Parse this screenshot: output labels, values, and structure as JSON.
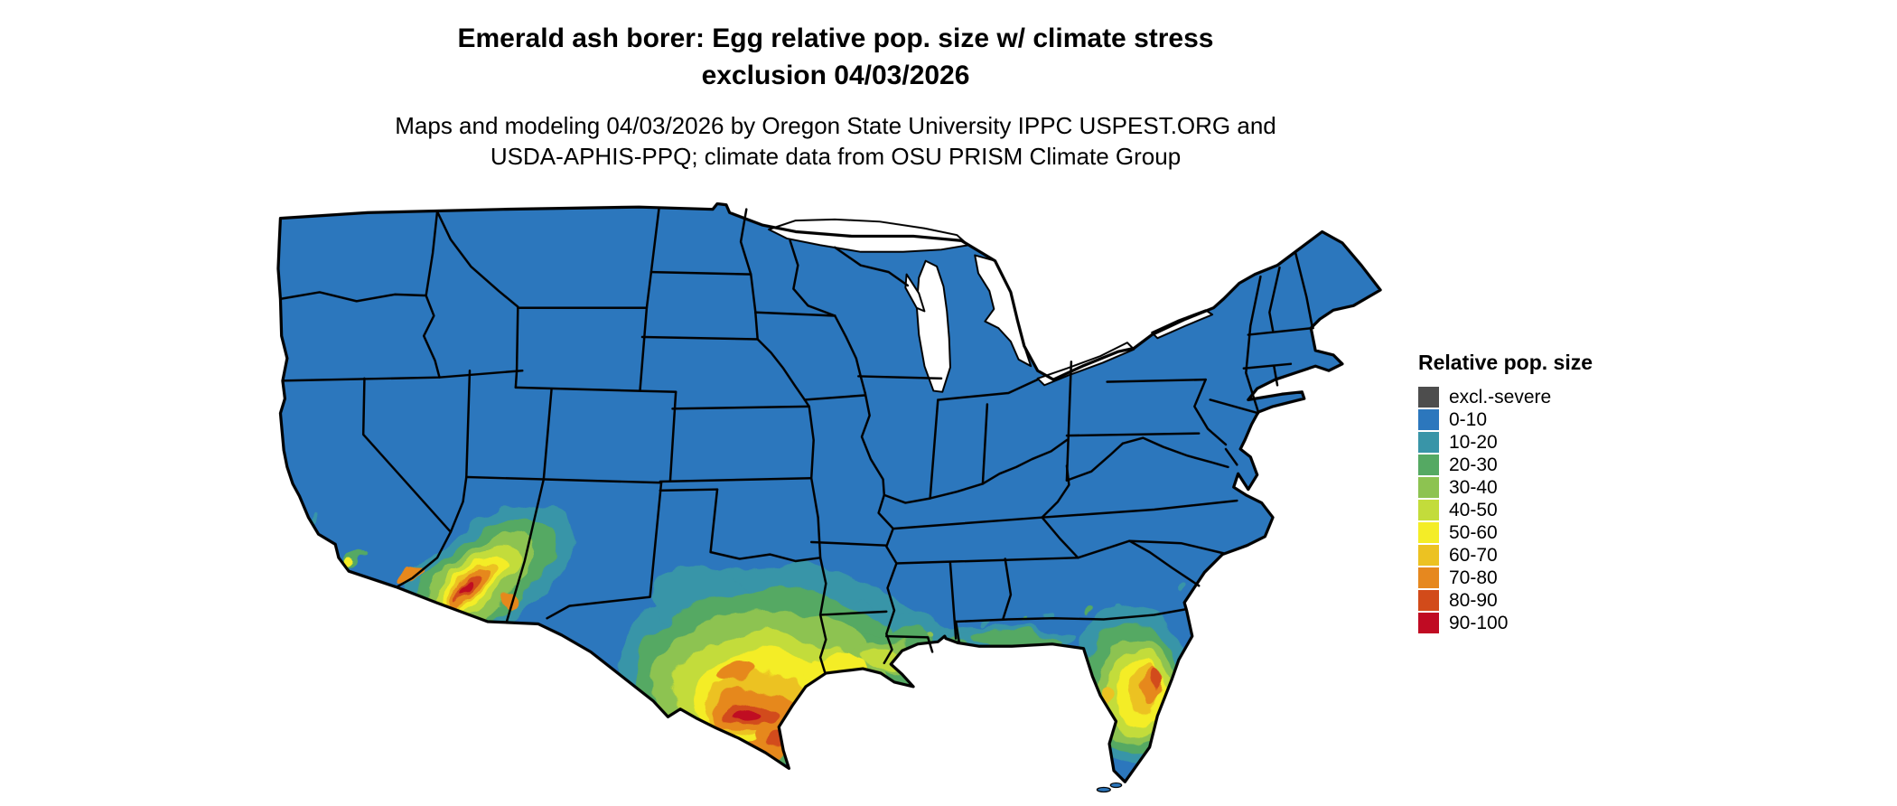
{
  "title": {
    "line1": "Emerald ash borer: Egg relative pop. size w/ climate stress",
    "line2": "exclusion 04/03/2026"
  },
  "subtitle": {
    "line1": "Maps and modeling 04/03/2026 by Oregon State University IPPC USPEST.ORG and",
    "line2": "USDA-APHIS-PPQ; climate data from OSU PRISM Climate Group"
  },
  "legend": {
    "title": "Relative pop. size",
    "entries": [
      {
        "label": "excl.-severe",
        "color": "#4d4d4d"
      },
      {
        "label": "0-10",
        "color": "#2c77bd"
      },
      {
        "label": "10-20",
        "color": "#3995a8"
      },
      {
        "label": "20-30",
        "color": "#55a963"
      },
      {
        "label": "30-40",
        "color": "#8dc351"
      },
      {
        "label": "40-50",
        "color": "#c3dc3b"
      },
      {
        "label": "50-60",
        "color": "#f4ed27"
      },
      {
        "label": "60-70",
        "color": "#ecc222"
      },
      {
        "label": "70-80",
        "color": "#e6881f"
      },
      {
        "label": "80-90",
        "color": "#d24b1a"
      },
      {
        "label": "90-100",
        "color": "#c00b23"
      }
    ]
  },
  "map": {
    "region": "Continental United States",
    "land_color": "#2c77bd",
    "border_color": "#000000",
    "lake_color": "#ffffff",
    "high_population_areas": "southern Texas, Gulf coast, southern Arizona / southeast California, Florida peninsula"
  }
}
